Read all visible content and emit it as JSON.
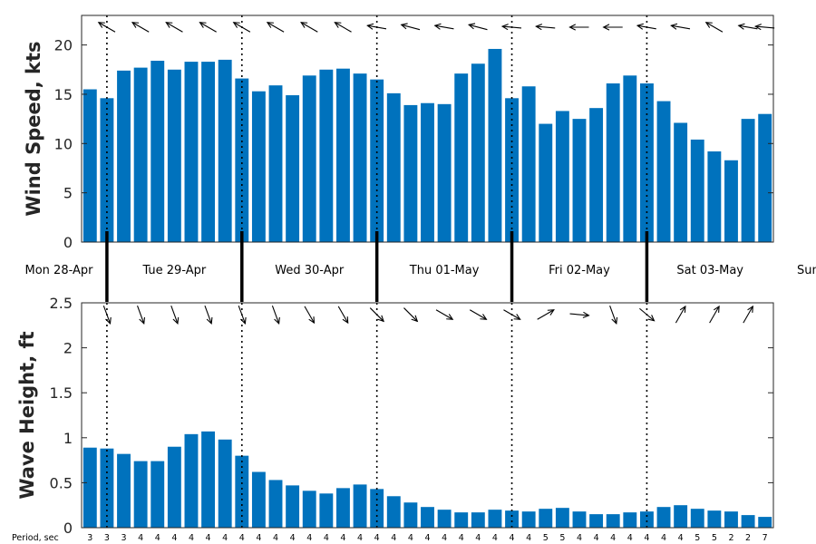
{
  "chart_data": [
    {
      "type": "bar",
      "ylabel": "Wind Speed, kts",
      "ylim": [
        0,
        23
      ],
      "yticks": [
        0,
        5,
        10,
        15,
        20
      ],
      "color": "#0072BD",
      "values": [
        15.5,
        14.6,
        17.4,
        17.7,
        18.4,
        17.5,
        18.3,
        18.3,
        18.5,
        16.6,
        15.3,
        15.9,
        14.9,
        16.9,
        17.5,
        17.6,
        17.1,
        16.5,
        15.1,
        13.9,
        14.1,
        14.0,
        17.1,
        18.1,
        19.6,
        14.6,
        15.8,
        12.0,
        13.3,
        12.5,
        13.6,
        16.1,
        16.9,
        16.1,
        14.3,
        12.1,
        10.4,
        9.2,
        8.3,
        12.5,
        13.0
      ],
      "direction_arrows": [
        null,
        300,
        null,
        300,
        null,
        300,
        null,
        300,
        null,
        300,
        null,
        300,
        null,
        300,
        null,
        300,
        null,
        280,
        null,
        285,
        null,
        280,
        null,
        285,
        null,
        275,
        null,
        275,
        null,
        270,
        null,
        270,
        null,
        280,
        null,
        280,
        null,
        300,
        null,
        280,
        275
      ],
      "grid": false
    },
    {
      "type": "bar",
      "ylabel": "Wave Height, ft",
      "ylim": [
        0,
        2.5
      ],
      "yticks": [
        0,
        0.5,
        1,
        1.5,
        2,
        2.5
      ],
      "color": "#0072BD",
      "values": [
        0.89,
        0.88,
        0.82,
        0.74,
        0.74,
        0.9,
        1.04,
        1.07,
        0.98,
        0.8,
        0.62,
        0.53,
        0.47,
        0.41,
        0.38,
        0.44,
        0.48,
        0.43,
        0.35,
        0.28,
        0.23,
        0.2,
        0.17,
        0.17,
        0.2,
        0.19,
        0.18,
        0.21,
        0.22,
        0.18,
        0.15,
        0.15,
        0.17,
        0.18,
        0.23,
        0.25,
        0.21,
        0.19,
        0.18,
        0.14,
        0.12
      ],
      "direction_arrows": [
        null,
        160,
        null,
        160,
        null,
        160,
        null,
        160,
        null,
        160,
        null,
        160,
        null,
        150,
        null,
        150,
        null,
        135,
        null,
        135,
        null,
        120,
        null,
        120,
        null,
        120,
        null,
        60,
        null,
        95,
        null,
        160,
        null,
        130,
        null,
        30,
        null,
        30,
        null,
        30,
        null
      ],
      "period_label": "Period, sec",
      "periods": [
        "3",
        "3",
        "3",
        "4",
        "4",
        "4",
        "4",
        "4",
        "4",
        "4",
        "4",
        "4",
        "4",
        "4",
        "4",
        "4",
        "4",
        "4",
        "4",
        "4",
        "4",
        "4",
        "4",
        "4",
        "4",
        "4",
        "4",
        "5",
        "5",
        "4",
        "4",
        "4",
        "4",
        "4",
        "4",
        "4",
        "5",
        "5",
        "2",
        "2",
        "7"
      ],
      "grid": false
    }
  ],
  "days": [
    "Mon 28-Apr",
    "Tue 29-Apr",
    "Wed 30-Apr",
    "Thu 01-May",
    "Fri 02-May",
    "Sat 03-May",
    "Sun"
  ],
  "day_boundaries": [
    1,
    9,
    17,
    25,
    33
  ]
}
